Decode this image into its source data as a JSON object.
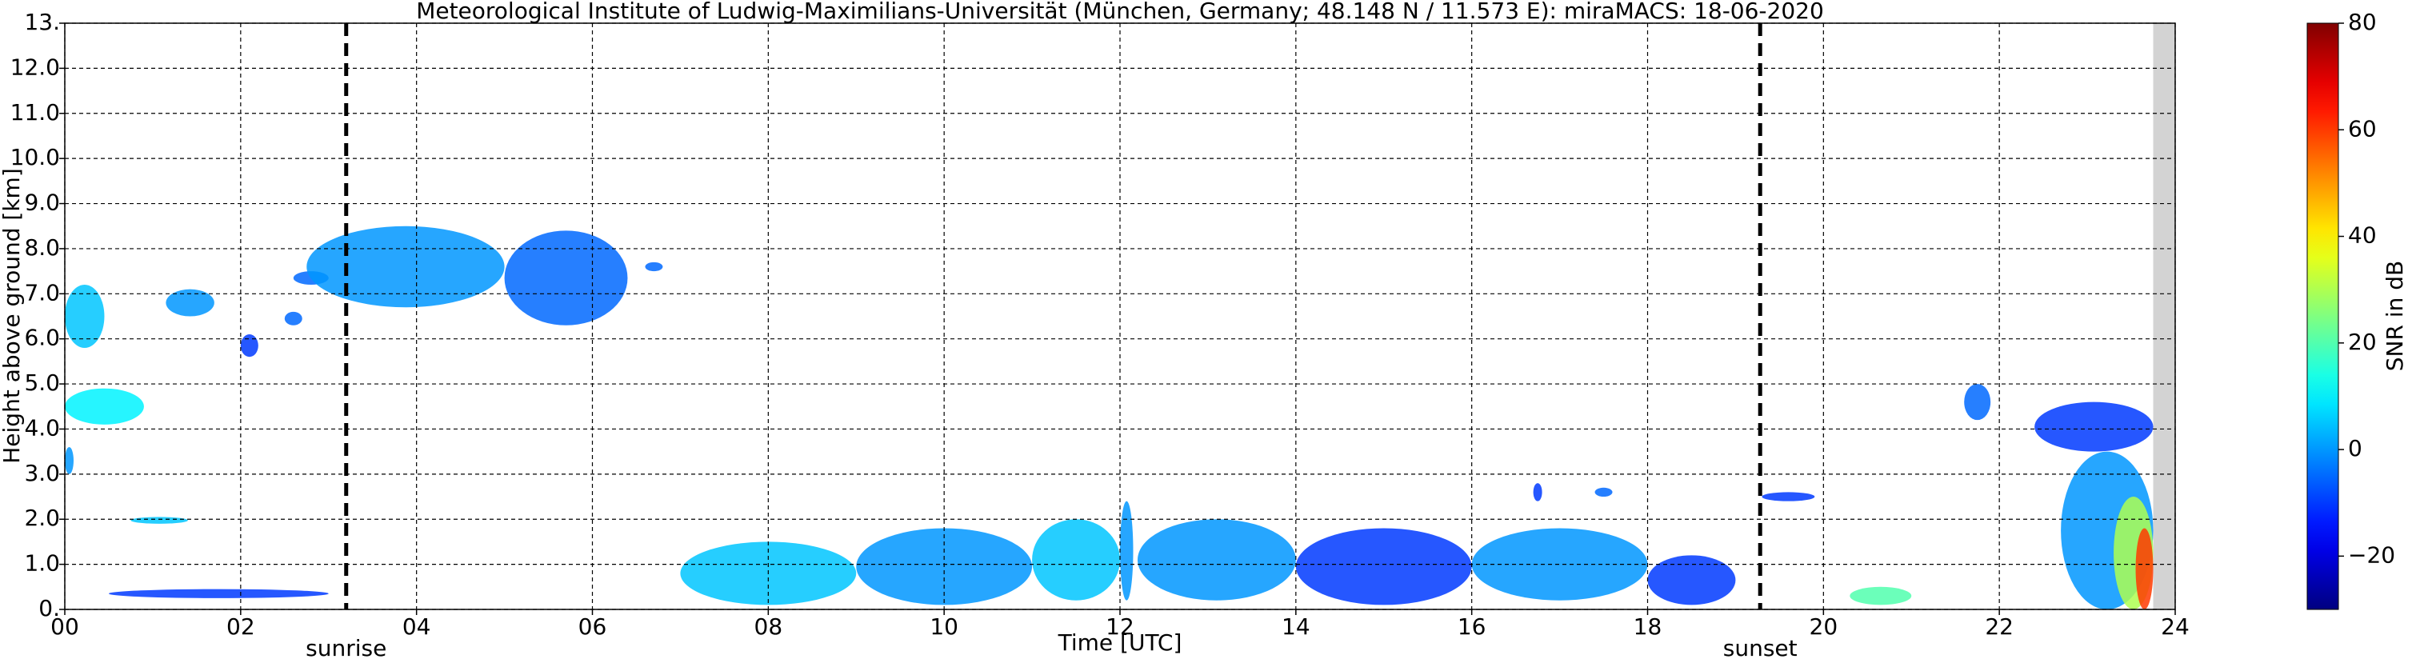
{
  "chart_data": {
    "type": "time-height",
    "title": "Meteorological Institute of Ludwig-Maximilians-Universität (München, Germany; 48.148 N / 11.573 E):    miraMACS: 18-06-2020",
    "xlabel": "Time [UTC]",
    "ylabel": "Height above ground [km]",
    "colorbar_label": "SNR in dB",
    "xlim": [
      0,
      24
    ],
    "ylim": [
      0,
      13
    ],
    "clim": [
      -30,
      80
    ],
    "colormap": "jet",
    "grid": true,
    "xticks": [
      {
        "value": 0,
        "label": "00"
      },
      {
        "value": 2,
        "label": "02"
      },
      {
        "value": 4,
        "label": "04"
      },
      {
        "value": 6,
        "label": "06"
      },
      {
        "value": 8,
        "label": "08"
      },
      10,
      12,
      14,
      16,
      18,
      20,
      22,
      24
    ],
    "yticks": [
      {
        "value": 0,
        "label": "0."
      },
      {
        "value": 1,
        "label": "1.0"
      },
      {
        "value": 2,
        "label": "2.0"
      },
      {
        "value": 3,
        "label": "3.0"
      },
      {
        "value": 4,
        "label": "4.0"
      },
      {
        "value": 5,
        "label": "5.0"
      },
      {
        "value": 6,
        "label": "6.0"
      },
      {
        "value": 7,
        "label": "7.0"
      },
      {
        "value": 8,
        "label": "8.0"
      },
      {
        "value": 9,
        "label": "9.0"
      },
      {
        "value": 10,
        "label": "10.0"
      },
      {
        "value": 11,
        "label": "11.0"
      },
      {
        "value": 12,
        "label": "12.0"
      },
      {
        "value": 13,
        "label": "13."
      }
    ],
    "cticks": [
      {
        "value": -20,
        "label": "−20"
      },
      0,
      20,
      40,
      60,
      80
    ],
    "annotations": [
      {
        "label": "sunrise",
        "x": 3.2
      },
      {
        "label": "sunset",
        "x": 19.28
      }
    ],
    "missing": [
      23.75,
      24
    ],
    "echoes": [
      {
        "t": [
          0.0,
          0.45
        ],
        "h": [
          5.8,
          7.2
        ],
        "snr": 5
      },
      {
        "t": [
          0.0,
          0.9
        ],
        "h": [
          4.1,
          4.9
        ],
        "snr": 10
      },
      {
        "t": [
          0.0,
          0.1
        ],
        "h": [
          3.0,
          3.6
        ],
        "snr": 0
      },
      {
        "t": [
          0.75,
          1.4
        ],
        "h": [
          1.9,
          2.05
        ],
        "snr": 5
      },
      {
        "t": [
          1.15,
          1.7
        ],
        "h": [
          6.5,
          7.1
        ],
        "snr": 0
      },
      {
        "t": [
          2.0,
          2.2
        ],
        "h": [
          5.6,
          6.1
        ],
        "snr": -10
      },
      {
        "t": [
          2.5,
          2.7
        ],
        "h": [
          6.3,
          6.6
        ],
        "snr": -5
      },
      {
        "t": [
          2.6,
          3.0
        ],
        "h": [
          7.2,
          7.5
        ],
        "snr": -5
      },
      {
        "t": [
          2.75,
          5.0
        ],
        "h": [
          6.7,
          8.5
        ],
        "snr": 0
      },
      {
        "t": [
          5.0,
          6.4
        ],
        "h": [
          6.3,
          8.4
        ],
        "snr": -5
      },
      {
        "t": [
          6.6,
          6.8
        ],
        "h": [
          7.5,
          7.7
        ],
        "snr": -5
      },
      {
        "t": [
          0.5,
          3.0
        ],
        "h": [
          0.25,
          0.45
        ],
        "snr": -10
      },
      {
        "t": [
          7.0,
          9.0
        ],
        "h": [
          0.1,
          1.5
        ],
        "snr": 5
      },
      {
        "t": [
          9.0,
          11.0
        ],
        "h": [
          0.1,
          1.8
        ],
        "snr": 0
      },
      {
        "t": [
          11.0,
          12.0
        ],
        "h": [
          0.2,
          2.0
        ],
        "snr": 5
      },
      {
        "t": [
          12.0,
          12.15
        ],
        "h": [
          0.2,
          2.4
        ],
        "snr": 0
      },
      {
        "t": [
          12.2,
          14.0
        ],
        "h": [
          0.2,
          2.0
        ],
        "snr": 0
      },
      {
        "t": [
          14.0,
          16.0
        ],
        "h": [
          0.1,
          1.8
        ],
        "snr": -10
      },
      {
        "t": [
          16.0,
          18.0
        ],
        "h": [
          0.2,
          1.8
        ],
        "snr": 0
      },
      {
        "t": [
          18.0,
          19.0
        ],
        "h": [
          0.1,
          1.2
        ],
        "snr": -10
      },
      {
        "t": [
          16.7,
          16.8
        ],
        "h": [
          2.4,
          2.8
        ],
        "snr": -10
      },
      {
        "t": [
          17.4,
          17.6
        ],
        "h": [
          2.5,
          2.7
        ],
        "snr": -5
      },
      {
        "t": [
          19.3,
          19.9
        ],
        "h": [
          2.4,
          2.6
        ],
        "snr": -10
      },
      {
        "t": [
          20.3,
          21.0
        ],
        "h": [
          0.1,
          0.5
        ],
        "snr": 20
      },
      {
        "t": [
          21.6,
          21.9
        ],
        "h": [
          4.2,
          5.0
        ],
        "snr": -5
      },
      {
        "t": [
          22.4,
          23.75
        ],
        "h": [
          3.5,
          4.6
        ],
        "snr": -10
      },
      {
        "t": [
          22.7,
          23.75
        ],
        "h": [
          0.0,
          3.5
        ],
        "snr": 0
      },
      {
        "t": [
          23.3,
          23.75
        ],
        "h": [
          0.0,
          2.5
        ],
        "snr": 30
      },
      {
        "t": [
          23.55,
          23.75
        ],
        "h": [
          0.0,
          1.8
        ],
        "snr": 60
      }
    ]
  }
}
